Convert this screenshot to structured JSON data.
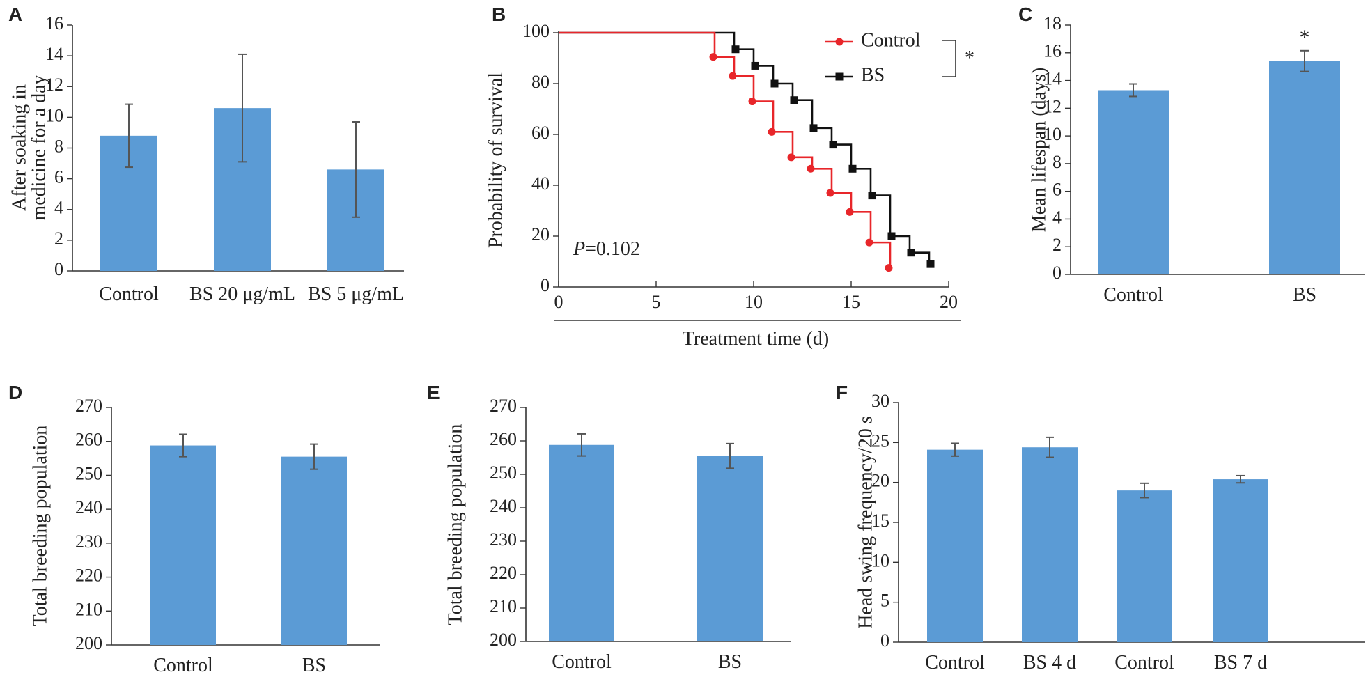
{
  "panels": [
    {
      "letter": "A",
      "chart_data": {
        "type": "bar",
        "categories": [
          "Control",
          "BS 20 μg/mL",
          "BS 5 μg/mL"
        ],
        "values": [
          8.8,
          10.6,
          6.6
        ],
        "errors": [
          2.05,
          3.5,
          3.1
        ],
        "ylabel": "After soaking in medicine for a day",
        "ylabel_lines": [
          "After soaking in",
          "medicine for a day"
        ],
        "xlabel": "",
        "ylim": [
          0,
          16
        ],
        "yticks": [
          0,
          2,
          4,
          6,
          8,
          10,
          12,
          14,
          16
        ],
        "bar_color": "#5b9bd5",
        "grid": false,
        "annotations": []
      }
    },
    {
      "letter": "B",
      "chart_data": {
        "type": "line",
        "step": true,
        "xlabel": "Treatment time (d)",
        "ylabel": "Probability of survival",
        "xlim": [
          0,
          20
        ],
        "ylim": [
          0,
          100
        ],
        "xticks": [
          0,
          5,
          10,
          15,
          20
        ],
        "yticks": [
          0,
          20,
          40,
          60,
          80,
          100
        ],
        "series": [
          {
            "name": "Control",
            "color": "#e8262a",
            "marker": "circle",
            "points": [
              [
                8,
                90.5
              ],
              [
                9,
                83
              ],
              [
                10,
                73
              ],
              [
                11,
                61
              ],
              [
                12,
                51
              ],
              [
                13,
                46.5
              ],
              [
                14,
                37
              ],
              [
                15,
                29.5
              ],
              [
                16,
                17.5
              ],
              [
                17,
                7.5
              ]
            ]
          },
          {
            "name": "BS",
            "color": "#111111",
            "marker": "square",
            "points": [
              [
                9,
                93.5
              ],
              [
                10,
                87
              ],
              [
                11,
                80
              ],
              [
                12,
                73.5
              ],
              [
                13,
                62.5
              ],
              [
                14,
                56
              ],
              [
                15,
                46.5
              ],
              [
                16,
                36
              ],
              [
                17,
                20
              ],
              [
                18,
                13.5
              ],
              [
                19,
                9
              ]
            ]
          }
        ],
        "annotation": "=0.102",
        "annotation_italic": "P",
        "significance": "*",
        "grid": false,
        "legend_position": "top-right"
      }
    },
    {
      "letter": "C",
      "chart_data": {
        "type": "bar",
        "categories": [
          "Control",
          "BS"
        ],
        "values": [
          13.3,
          15.4
        ],
        "errors": [
          0.45,
          0.75
        ],
        "ylabel": "Mean lifespan (days)",
        "xlabel": "",
        "ylim": [
          0,
          18
        ],
        "yticks": [
          0,
          2,
          4,
          6,
          8,
          10,
          12,
          14,
          16,
          18
        ],
        "bar_color": "#5b9bd5",
        "grid": false,
        "annotations": [
          {
            "category": "BS",
            "text": "*"
          }
        ]
      }
    },
    {
      "letter": "D",
      "chart_data": {
        "type": "bar",
        "categories": [
          "Control",
          "BS"
        ],
        "values": [
          258.8,
          255.5
        ],
        "errors": [
          3.3,
          3.7
        ],
        "ylabel": "Total breeding population",
        "xlabel": "",
        "ylim": [
          200,
          270
        ],
        "yticks": [
          200,
          210,
          220,
          230,
          240,
          250,
          260,
          270
        ],
        "bar_color": "#5b9bd5",
        "grid": false,
        "annotations": []
      }
    },
    {
      "letter": "E",
      "chart_data": {
        "type": "bar",
        "categories": [
          "Control",
          "BS"
        ],
        "values": [
          258.8,
          255.5
        ],
        "errors": [
          3.3,
          3.7
        ],
        "ylabel": "Total breeding population",
        "xlabel": "",
        "ylim": [
          200,
          270
        ],
        "yticks": [
          200,
          210,
          220,
          230,
          240,
          250,
          260,
          270
        ],
        "bar_color": "#5b9bd5",
        "grid": false,
        "annotations": []
      }
    },
    {
      "letter": "F",
      "chart_data": {
        "type": "bar",
        "categories": [
          "Control",
          "BS 4 d",
          "Control",
          "BS 7 d"
        ],
        "values": [
          24.1,
          24.4,
          19.0,
          20.4
        ],
        "errors": [
          0.8,
          1.25,
          0.9,
          0.45
        ],
        "ylabel": "Head swing frequency/20 s",
        "xlabel": "",
        "ylim": [
          0,
          30
        ],
        "yticks": [
          0,
          5,
          10,
          15,
          20,
          25,
          30
        ],
        "bar_color": "#5b9bd5",
        "grid": false,
        "annotations": []
      }
    }
  ]
}
